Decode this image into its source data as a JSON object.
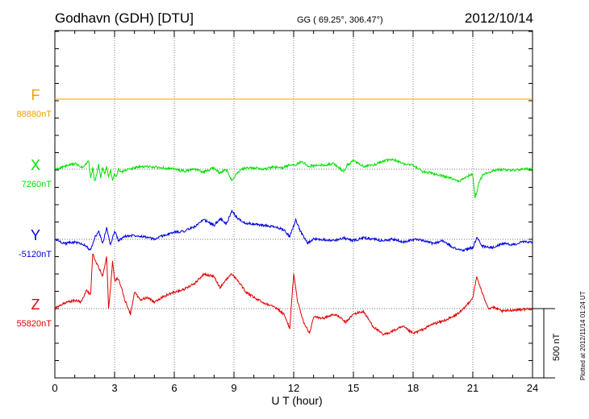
{
  "header": {
    "station": "Godhavn (GDH)  [DTU]",
    "coords": "GG ( 69.25°, 306.47°)",
    "date": "2012/10/14"
  },
  "plotted_note": "Plotted at 2012/11/14 01:24  UT",
  "scale_label": "500 nT",
  "chart_data": {
    "type": "line",
    "title": "Godhavn (GDH)  [DTU]",
    "xlabel": "U T (hour)",
    "ylabel": "",
    "xlim": [
      0,
      24
    ],
    "x_ticks": [
      0,
      3,
      6,
      9,
      12,
      15,
      18,
      21,
      24
    ],
    "x_tick_labels": [
      "0",
      "3",
      "6",
      "9",
      "12",
      "15",
      "18",
      "21",
      "24"
    ],
    "grid": true,
    "scale_bar_nT": 500,
    "series": [
      {
        "name": "F",
        "baseline_label": "88880nT",
        "color": "#f0a000",
        "baseline_nT": 88880,
        "x": [
          0,
          24
        ],
        "y": [
          0,
          0
        ]
      },
      {
        "name": "X",
        "baseline_label": "7260nT",
        "color": "#00e000",
        "baseline_nT": 7260,
        "x": [
          0,
          0.5,
          1.0,
          1.4,
          1.7,
          1.8,
          1.9,
          2.0,
          2.1,
          2.2,
          2.3,
          2.4,
          2.5,
          2.6,
          2.7,
          2.8,
          2.9,
          3.0,
          3.1,
          3.2,
          3.3,
          3.5,
          4.0,
          4.5,
          5.0,
          5.5,
          6.0,
          6.5,
          7.0,
          7.5,
          8.0,
          8.3,
          8.6,
          8.9,
          9.2,
          9.5,
          10.0,
          10.5,
          11.0,
          11.5,
          11.9,
          12.1,
          12.4,
          12.7,
          13.0,
          13.5,
          14.0,
          14.3,
          14.5,
          14.7,
          15.0,
          15.5,
          16.0,
          16.5,
          17.0,
          17.5,
          18.0,
          18.5,
          19.0,
          19.5,
          20.0,
          20.3,
          20.6,
          21.0,
          21.1,
          21.2,
          21.3,
          21.5,
          22.0,
          22.5,
          23.0,
          23.5,
          24.0
        ],
        "y": [
          0,
          20,
          40,
          10,
          60,
          -70,
          10,
          -90,
          -40,
          30,
          -60,
          10,
          -40,
          20,
          -60,
          -10,
          -80,
          -30,
          -50,
          0,
          -20,
          -10,
          10,
          20,
          15,
          10,
          0,
          -15,
          0,
          -20,
          10,
          -30,
          0,
          -80,
          -20,
          5,
          10,
          0,
          15,
          10,
          40,
          30,
          60,
          20,
          25,
          30,
          40,
          10,
          -20,
          30,
          60,
          20,
          30,
          60,
          70,
          40,
          30,
          -20,
          -30,
          -50,
          -70,
          -90,
          -60,
          -30,
          -200,
          -170,
          -100,
          -40,
          -10,
          0,
          -10,
          0,
          0
        ]
      },
      {
        "name": "Y",
        "baseline_label": "-5120nT",
        "color": "#0000e0",
        "baseline_nT": -5120,
        "x": [
          0,
          0.5,
          1.0,
          1.5,
          1.8,
          2.0,
          2.2,
          2.4,
          2.6,
          2.8,
          3.0,
          3.2,
          3.5,
          4.0,
          4.5,
          5.0,
          5.5,
          6.0,
          6.5,
          7.0,
          7.5,
          8.0,
          8.3,
          8.6,
          8.9,
          9.2,
          9.5,
          10.0,
          10.5,
          11.0,
          11.5,
          11.8,
          12.1,
          12.4,
          12.7,
          13.0,
          13.5,
          14.0,
          14.5,
          15.0,
          15.5,
          16.0,
          16.5,
          17.0,
          17.5,
          18.0,
          18.5,
          19.0,
          19.5,
          20.0,
          20.5,
          21.0,
          21.2,
          21.5,
          22.0,
          22.5,
          23.0,
          23.5,
          24.0
        ],
        "y": [
          0,
          -30,
          -20,
          -40,
          -80,
          10,
          60,
          -30,
          80,
          -40,
          60,
          -10,
          20,
          30,
          20,
          0,
          30,
          50,
          60,
          90,
          140,
          100,
          150,
          110,
          200,
          150,
          120,
          110,
          100,
          90,
          70,
          20,
          140,
          40,
          -30,
          0,
          0,
          -10,
          10,
          -10,
          10,
          0,
          -10,
          0,
          -20,
          0,
          -10,
          -30,
          -10,
          -60,
          -80,
          -60,
          10,
          -50,
          -60,
          -30,
          -40,
          -20,
          -20
        ]
      },
      {
        "name": "Z",
        "baseline_label": "55820nT",
        "color": "#e00000",
        "baseline_nT": 55820,
        "x": [
          0,
          0.5,
          1.0,
          1.3,
          1.6,
          1.8,
          1.9,
          2.0,
          2.2,
          2.4,
          2.6,
          2.7,
          2.8,
          2.9,
          3.0,
          3.2,
          3.5,
          3.8,
          4.0,
          4.3,
          4.6,
          5.0,
          5.5,
          6.0,
          6.5,
          7.0,
          7.5,
          8.0,
          8.3,
          8.6,
          8.9,
          9.2,
          9.6,
          10.0,
          10.5,
          11.0,
          11.5,
          11.8,
          12.0,
          12.2,
          12.5,
          12.8,
          13.0,
          13.5,
          14.0,
          14.3,
          14.6,
          15.0,
          15.5,
          16.0,
          16.5,
          17.0,
          17.5,
          18.0,
          18.5,
          19.0,
          19.5,
          20.0,
          20.5,
          21.0,
          21.2,
          21.5,
          21.8,
          22.0,
          22.5,
          23.0,
          23.5,
          24.0
        ],
        "y": [
          0,
          40,
          60,
          50,
          130,
          100,
          400,
          350,
          300,
          230,
          370,
          0,
          150,
          350,
          200,
          220,
          70,
          -40,
          120,
          60,
          80,
          50,
          90,
          120,
          140,
          180,
          250,
          230,
          150,
          210,
          250,
          200,
          120,
          80,
          40,
          20,
          -40,
          -140,
          250,
          50,
          -100,
          -180,
          -60,
          -70,
          -40,
          -60,
          -100,
          -40,
          -20,
          -130,
          -190,
          -160,
          -130,
          -180,
          -150,
          -110,
          -90,
          -60,
          -10,
          80,
          230,
          100,
          0,
          10,
          -20,
          -10,
          -5,
          0
        ]
      }
    ]
  }
}
